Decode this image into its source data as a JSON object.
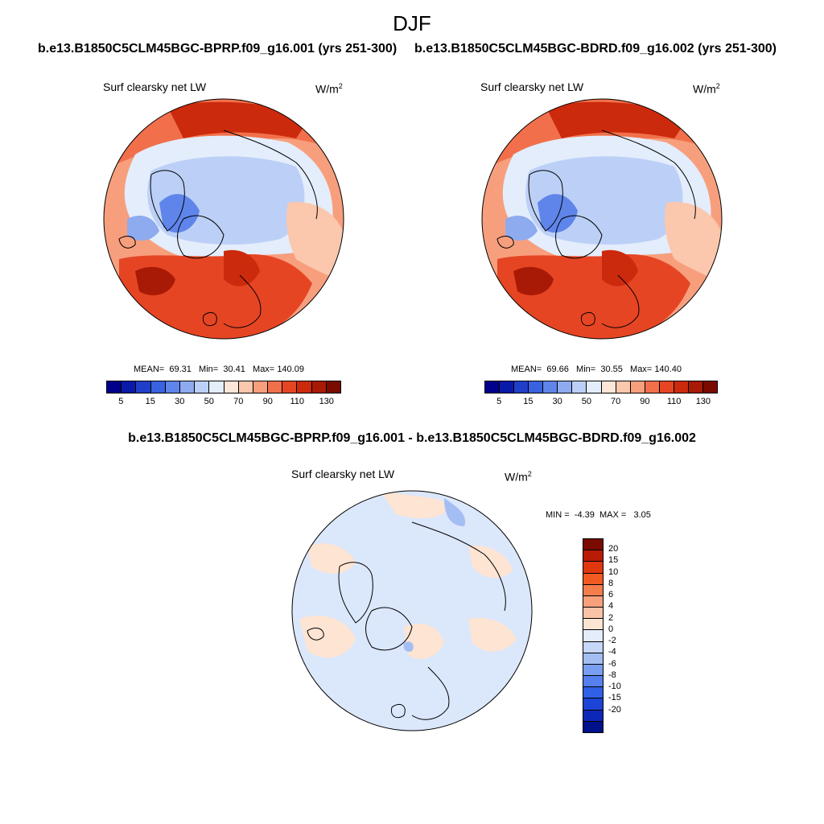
{
  "season": "DJF",
  "panels": [
    {
      "run_title": "b.e13.B1850C5CLM45BGC-BPRP.f09_g16.001 (yrs 251-300)",
      "variable": "Surf clearsky net LW",
      "units_base": "W/m",
      "units_exp": "2",
      "stats": {
        "mean_label": "MEAN=",
        "mean": "69.31",
        "min_label": "Min=",
        "min": "30.41",
        "max_label": "Max=",
        "max": "140.09"
      }
    },
    {
      "run_title": "b.e13.B1850C5CLM45BGC-BDRD.f09_g16.002 (yrs 251-300)",
      "variable": "Surf clearsky net LW",
      "units_base": "W/m",
      "units_exp": "2",
      "stats": {
        "mean_label": "MEAN=",
        "mean": "69.66",
        "min_label": "Min=",
        "min": "30.55",
        "max_label": "Max=",
        "max": "140.40"
      }
    }
  ],
  "main_colorbar": {
    "colors": [
      "#00008b",
      "#0a1aa8",
      "#1f3fc8",
      "#3a62e0",
      "#5f85ea",
      "#8eabf0",
      "#bcd0f7",
      "#e3edfc",
      "#fde6d8",
      "#fbc7ad",
      "#f79f7d",
      "#f1704b",
      "#e64524",
      "#cc2a0c",
      "#a81a05",
      "#7a0b00"
    ],
    "tick_labels": [
      "5",
      "15",
      "30",
      "50",
      "70",
      "90",
      "110",
      "130"
    ]
  },
  "diff": {
    "title": "b.e13.B1850C5CLM45BGC-BPRP.f09_g16.001 - b.e13.B1850C5CLM45BGC-BDRD.f09_g16.002",
    "variable": "Surf clearsky net LW",
    "units_base": "W/m",
    "units_exp": "2",
    "min_label": "MIN =",
    "min": "-4.39",
    "max_label": "MAX =",
    "max": "3.05",
    "colorbar": {
      "colors": [
        "#7a0b00",
        "#b81c05",
        "#e0370f",
        "#f25a23",
        "#f47c4d",
        "#f8a07b",
        "#fbc3a6",
        "#fde4d3",
        "#e3edfc",
        "#c6d7f8",
        "#a3bef3",
        "#7b9ff0",
        "#5580ee",
        "#3060e8",
        "#1c44d6",
        "#0d28b8",
        "#00118c"
      ],
      "labels": [
        "20",
        "15",
        "10",
        "8",
        "6",
        "4",
        "2",
        "0",
        "-2",
        "-4",
        "-6",
        "-8",
        "-10",
        "-15",
        "-20"
      ]
    }
  },
  "map_colors": {
    "land_outline": "#000000",
    "arctic_blue": "#bcd0f7",
    "deep_blue": "#5f85ea",
    "mid_blue": "#8eabf0",
    "pale_blue": "#e3edfc",
    "pale_orange": "#fde6d8",
    "light_orange": "#fbc7ad",
    "orange": "#f1704b",
    "red": "#cc2a0c",
    "dark_red": "#a81a05",
    "diff_base": "#dbe7fb",
    "diff_warm": "#fde4d3",
    "diff_cool": "#a3bef3"
  }
}
